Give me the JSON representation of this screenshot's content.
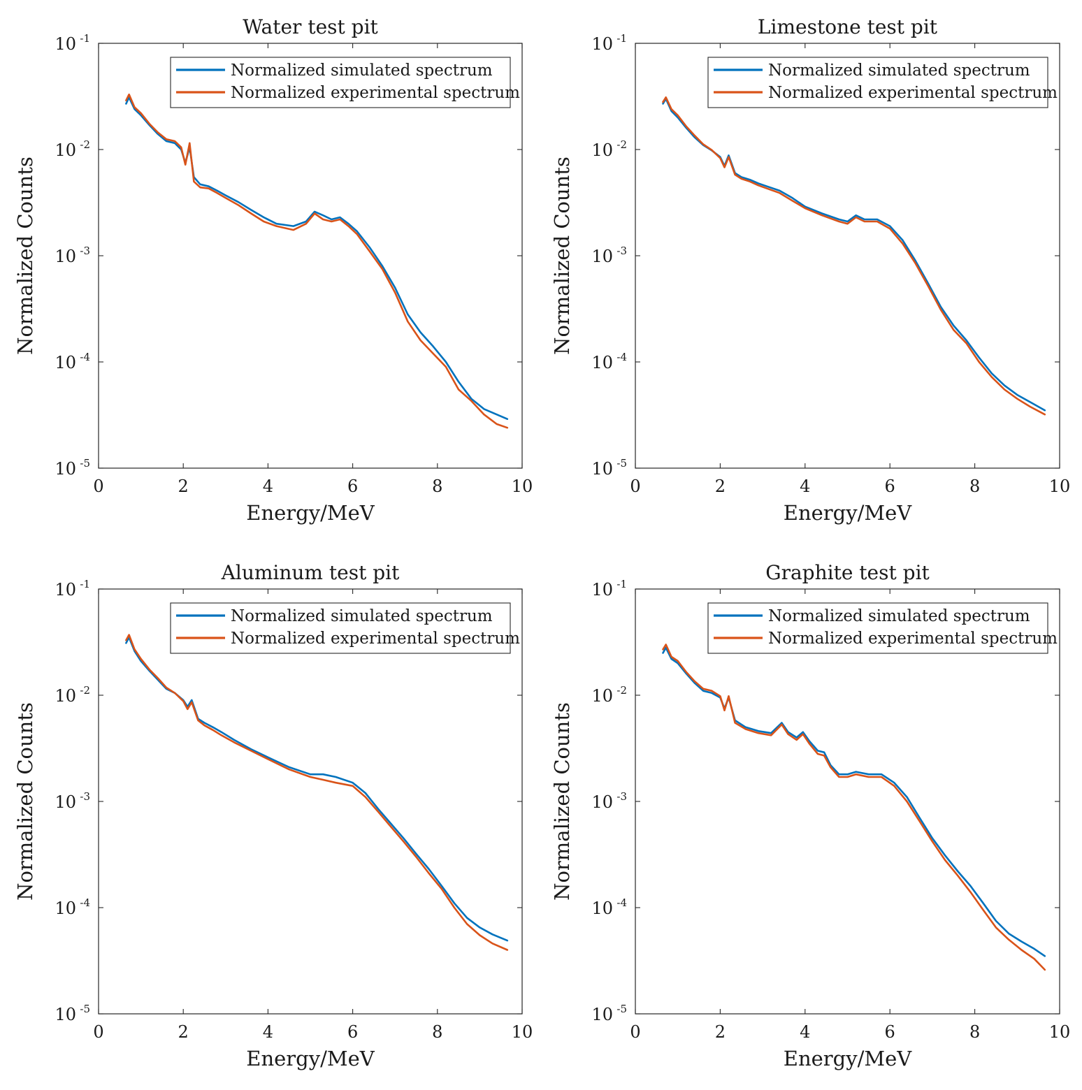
{
  "chart_data": [
    {
      "type": "line",
      "title": "Water test pit",
      "xlabel": "Energy/MeV",
      "ylabel": "Normalized Counts",
      "xlim": [
        0,
        10
      ],
      "ylim": [
        1e-05,
        0.1
      ],
      "yscale": "log",
      "xticks": [
        "0",
        "2",
        "4",
        "6",
        "8",
        "10"
      ],
      "yticks": [
        {
          "base": "10",
          "exp": "-1"
        },
        {
          "base": "10",
          "exp": "-2"
        },
        {
          "base": "10",
          "exp": "-3"
        },
        {
          "base": "10",
          "exp": "-4"
        },
        {
          "base": "10",
          "exp": "-5"
        }
      ],
      "grid": false,
      "legend": "top-right",
      "series": [
        {
          "name": "Normalized simulated spectrum",
          "color": "#0072BD",
          "x": [
            0.65,
            0.72,
            0.85,
            1.0,
            1.2,
            1.4,
            1.6,
            1.8,
            1.95,
            2.05,
            2.15,
            2.25,
            2.4,
            2.6,
            2.8,
            3.0,
            3.3,
            3.6,
            3.9,
            4.2,
            4.6,
            4.9,
            5.1,
            5.3,
            5.5,
            5.7,
            5.9,
            6.1,
            6.4,
            6.7,
            7.0,
            7.3,
            7.6,
            7.9,
            8.2,
            8.5,
            8.8,
            9.1,
            9.4,
            9.65
          ],
          "y": [
            0.027,
            0.031,
            0.024,
            0.021,
            0.017,
            0.014,
            0.012,
            0.0115,
            0.01,
            0.0075,
            0.0105,
            0.0055,
            0.0047,
            0.0045,
            0.0041,
            0.0037,
            0.0032,
            0.0027,
            0.0023,
            0.002,
            0.0019,
            0.0021,
            0.0026,
            0.0024,
            0.0022,
            0.0023,
            0.002,
            0.0017,
            0.0012,
            0.0008,
            0.0005,
            0.00028,
            0.00019,
            0.00014,
            0.0001,
            6.5e-05,
            4.5e-05,
            3.6e-05,
            3.2e-05,
            2.9e-05
          ]
        },
        {
          "name": "Normalized experimental spectrum",
          "color": "#D95319",
          "x": [
            0.65,
            0.72,
            0.85,
            1.0,
            1.2,
            1.4,
            1.6,
            1.8,
            1.95,
            2.05,
            2.15,
            2.25,
            2.4,
            2.6,
            2.8,
            3.0,
            3.3,
            3.6,
            3.9,
            4.2,
            4.6,
            4.9,
            5.1,
            5.3,
            5.5,
            5.7,
            5.9,
            6.1,
            6.4,
            6.7,
            7.0,
            7.3,
            7.6,
            7.9,
            8.2,
            8.5,
            8.8,
            9.1,
            9.4,
            9.65
          ],
          "y": [
            0.029,
            0.033,
            0.025,
            0.022,
            0.0175,
            0.0145,
            0.0125,
            0.012,
            0.0105,
            0.0072,
            0.0115,
            0.005,
            0.0044,
            0.0043,
            0.0039,
            0.0035,
            0.003,
            0.0025,
            0.0021,
            0.0019,
            0.00175,
            0.002,
            0.0025,
            0.0022,
            0.0021,
            0.0022,
            0.0019,
            0.0016,
            0.0011,
            0.00075,
            0.00045,
            0.00024,
            0.00016,
            0.00012,
            9e-05,
            5.5e-05,
            4.3e-05,
            3.2e-05,
            2.6e-05,
            2.4e-05
          ]
        }
      ]
    },
    {
      "type": "line",
      "title": "Limestone test pit",
      "xlabel": "Energy/MeV",
      "ylabel": "Normalized Counts",
      "xlim": [
        0,
        10
      ],
      "ylim": [
        1e-05,
        0.1
      ],
      "yscale": "log",
      "xticks": [
        "0",
        "2",
        "4",
        "6",
        "8",
        "10"
      ],
      "yticks": [
        {
          "base": "10",
          "exp": "-1"
        },
        {
          "base": "10",
          "exp": "-2"
        },
        {
          "base": "10",
          "exp": "-3"
        },
        {
          "base": "10",
          "exp": "-4"
        },
        {
          "base": "10",
          "exp": "-5"
        }
      ],
      "grid": false,
      "legend": "top-right",
      "series": [
        {
          "name": "Normalized simulated spectrum",
          "color": "#0072BD",
          "x": [
            0.65,
            0.72,
            0.85,
            1.0,
            1.2,
            1.4,
            1.6,
            1.8,
            2.0,
            2.1,
            2.2,
            2.35,
            2.5,
            2.7,
            2.9,
            3.1,
            3.4,
            3.7,
            4.0,
            4.4,
            4.8,
            5.0,
            5.2,
            5.4,
            5.7,
            6.0,
            6.3,
            6.6,
            6.9,
            7.2,
            7.5,
            7.8,
            8.1,
            8.4,
            8.7,
            9.0,
            9.3,
            9.65
          ],
          "y": [
            0.027,
            0.03,
            0.023,
            0.02,
            0.016,
            0.013,
            0.011,
            0.0098,
            0.0085,
            0.007,
            0.0088,
            0.006,
            0.0055,
            0.0052,
            0.0048,
            0.0045,
            0.0041,
            0.0035,
            0.0029,
            0.0025,
            0.0022,
            0.0021,
            0.0024,
            0.0022,
            0.0022,
            0.0019,
            0.0014,
            0.0009,
            0.00055,
            0.00033,
            0.00022,
            0.00016,
            0.00011,
            7.8e-05,
            6e-05,
            4.9e-05,
            4.2e-05,
            3.5e-05
          ]
        },
        {
          "name": "Normalized experimental spectrum",
          "color": "#D95319",
          "x": [
            0.65,
            0.72,
            0.85,
            1.0,
            1.2,
            1.4,
            1.6,
            1.8,
            2.0,
            2.1,
            2.2,
            2.35,
            2.5,
            2.7,
            2.9,
            3.1,
            3.4,
            3.7,
            4.0,
            4.4,
            4.8,
            5.0,
            5.2,
            5.4,
            5.7,
            6.0,
            6.3,
            6.6,
            6.9,
            7.2,
            7.5,
            7.8,
            8.1,
            8.4,
            8.7,
            9.0,
            9.3,
            9.65
          ],
          "y": [
            0.028,
            0.031,
            0.024,
            0.021,
            0.0165,
            0.0135,
            0.0112,
            0.0099,
            0.0083,
            0.0068,
            0.0085,
            0.0058,
            0.0053,
            0.005,
            0.0046,
            0.0043,
            0.0039,
            0.0033,
            0.0028,
            0.0024,
            0.0021,
            0.002,
            0.0023,
            0.0021,
            0.0021,
            0.0018,
            0.0013,
            0.00085,
            0.00052,
            0.00031,
            0.0002,
            0.00015,
            0.0001,
            7.2e-05,
            5.5e-05,
            4.5e-05,
            3.8e-05,
            3.2e-05
          ]
        }
      ]
    },
    {
      "type": "line",
      "title": "Aluminum test pit",
      "xlabel": "Energy/MeV",
      "ylabel": "Normalized Counts",
      "xlim": [
        0,
        10
      ],
      "ylim": [
        1e-05,
        0.1
      ],
      "yscale": "log",
      "xticks": [
        "0",
        "2",
        "4",
        "6",
        "8",
        "10"
      ],
      "yticks": [
        {
          "base": "10",
          "exp": "-1"
        },
        {
          "base": "10",
          "exp": "-2"
        },
        {
          "base": "10",
          "exp": "-3"
        },
        {
          "base": "10",
          "exp": "-4"
        },
        {
          "base": "10",
          "exp": "-5"
        }
      ],
      "grid": false,
      "legend": "top-right",
      "series": [
        {
          "name": "Normalized simulated spectrum",
          "color": "#0072BD",
          "x": [
            0.65,
            0.72,
            0.85,
            1.0,
            1.2,
            1.4,
            1.6,
            1.8,
            2.0,
            2.1,
            2.2,
            2.35,
            2.5,
            2.7,
            2.9,
            3.2,
            3.6,
            4.0,
            4.5,
            5.0,
            5.3,
            5.6,
            6.0,
            6.3,
            6.6,
            6.9,
            7.2,
            7.5,
            7.8,
            8.1,
            8.4,
            8.7,
            9.0,
            9.3,
            9.65
          ],
          "y": [
            0.031,
            0.035,
            0.026,
            0.021,
            0.017,
            0.014,
            0.0115,
            0.0105,
            0.009,
            0.0078,
            0.009,
            0.006,
            0.0055,
            0.005,
            0.0045,
            0.0038,
            0.0031,
            0.0026,
            0.0021,
            0.0018,
            0.0018,
            0.0017,
            0.0015,
            0.0012,
            0.00085,
            0.00062,
            0.00045,
            0.00032,
            0.00023,
            0.00016,
            0.00011,
            8e-05,
            6.5e-05,
            5.6e-05,
            4.9e-05
          ]
        },
        {
          "name": "Normalized experimental spectrum",
          "color": "#D95319",
          "x": [
            0.65,
            0.72,
            0.85,
            1.0,
            1.2,
            1.4,
            1.6,
            1.8,
            2.0,
            2.1,
            2.2,
            2.35,
            2.5,
            2.7,
            2.9,
            3.2,
            3.6,
            4.0,
            4.5,
            5.0,
            5.3,
            5.6,
            6.0,
            6.3,
            6.6,
            6.9,
            7.2,
            7.5,
            7.8,
            8.1,
            8.4,
            8.7,
            9.0,
            9.3,
            9.65
          ],
          "y": [
            0.033,
            0.037,
            0.027,
            0.022,
            0.0175,
            0.0145,
            0.0118,
            0.0105,
            0.0088,
            0.0074,
            0.0086,
            0.0058,
            0.0052,
            0.0047,
            0.0042,
            0.0036,
            0.003,
            0.0025,
            0.002,
            0.0017,
            0.0016,
            0.0015,
            0.0014,
            0.0011,
            0.0008,
            0.00058,
            0.00042,
            0.0003,
            0.00021,
            0.00015,
            0.0001,
            7e-05,
            5.5e-05,
            4.6e-05,
            4e-05
          ]
        }
      ]
    },
    {
      "type": "line",
      "title": "Graphite test pit",
      "xlabel": "Energy/MeV",
      "ylabel": "Normalized Counts",
      "xlim": [
        0,
        10
      ],
      "ylim": [
        1e-05,
        0.1
      ],
      "yscale": "log",
      "xticks": [
        "0",
        "2",
        "4",
        "6",
        "8",
        "10"
      ],
      "yticks": [
        {
          "base": "10",
          "exp": "-1"
        },
        {
          "base": "10",
          "exp": "-2"
        },
        {
          "base": "10",
          "exp": "-3"
        },
        {
          "base": "10",
          "exp": "-4"
        },
        {
          "base": "10",
          "exp": "-5"
        }
      ],
      "grid": false,
      "legend": "top-right",
      "series": [
        {
          "name": "Normalized simulated spectrum",
          "color": "#0072BD",
          "x": [
            0.65,
            0.72,
            0.85,
            1.0,
            1.2,
            1.4,
            1.6,
            1.8,
            2.0,
            2.1,
            2.2,
            2.35,
            2.6,
            2.9,
            3.2,
            3.45,
            3.6,
            3.8,
            3.95,
            4.1,
            4.3,
            4.45,
            4.6,
            4.8,
            5.0,
            5.2,
            5.5,
            5.8,
            6.1,
            6.4,
            6.7,
            7.0,
            7.3,
            7.6,
            7.9,
            8.2,
            8.5,
            8.8,
            9.1,
            9.4,
            9.65
          ],
          "y": [
            0.025,
            0.028,
            0.022,
            0.02,
            0.016,
            0.013,
            0.011,
            0.0105,
            0.0095,
            0.0075,
            0.0095,
            0.0058,
            0.005,
            0.0046,
            0.0044,
            0.0055,
            0.0045,
            0.004,
            0.0045,
            0.0037,
            0.003,
            0.0029,
            0.0022,
            0.0018,
            0.0018,
            0.0019,
            0.0018,
            0.0018,
            0.0015,
            0.0011,
            0.0007,
            0.00045,
            0.00031,
            0.00022,
            0.00016,
            0.00011,
            7.5e-05,
            5.7e-05,
            4.8e-05,
            4.1e-05,
            3.5e-05
          ]
        },
        {
          "name": "Normalized experimental spectrum",
          "color": "#D95319",
          "x": [
            0.65,
            0.72,
            0.85,
            1.0,
            1.2,
            1.4,
            1.6,
            1.8,
            2.0,
            2.1,
            2.2,
            2.35,
            2.6,
            2.9,
            3.2,
            3.45,
            3.6,
            3.8,
            3.95,
            4.1,
            4.3,
            4.45,
            4.6,
            4.8,
            5.0,
            5.2,
            5.5,
            5.8,
            6.1,
            6.4,
            6.7,
            7.0,
            7.3,
            7.6,
            7.9,
            8.2,
            8.5,
            8.8,
            9.1,
            9.4,
            9.65
          ],
          "y": [
            0.027,
            0.03,
            0.023,
            0.021,
            0.0165,
            0.0135,
            0.0115,
            0.011,
            0.0098,
            0.0072,
            0.0098,
            0.0055,
            0.0048,
            0.0044,
            0.0042,
            0.0053,
            0.0043,
            0.0038,
            0.0043,
            0.0035,
            0.0028,
            0.0027,
            0.0021,
            0.0017,
            0.0017,
            0.0018,
            0.0017,
            0.0017,
            0.0014,
            0.001,
            0.00065,
            0.00042,
            0.00028,
            0.0002,
            0.00014,
            9.5e-05,
            6.5e-05,
            5e-05,
            4e-05,
            3.3e-05,
            2.6e-05
          ]
        }
      ]
    }
  ]
}
